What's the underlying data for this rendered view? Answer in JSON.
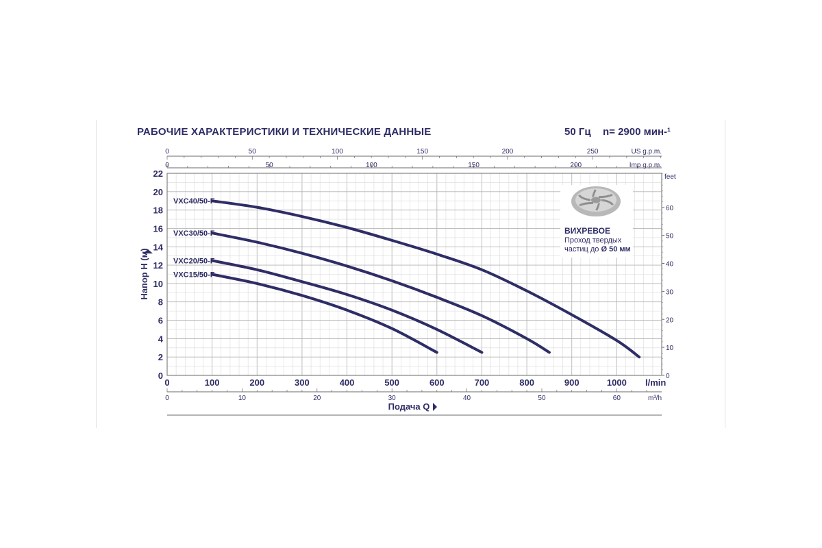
{
  "header": {
    "title": "РАБОЧИЕ ХАРАКТЕРИСТИКИ И ТЕХНИЧЕСКИЕ ДАННЫЕ",
    "frequency": "50 Гц",
    "speed": "n= 2900 мин-¹"
  },
  "badge": {
    "title": "ВИХРЕВОЕ",
    "line1": "Проход твердых",
    "line2_prefix": "частиц до ",
    "line2_bold": "Ø 50 мм"
  },
  "colors": {
    "curve": "#2e2d66",
    "grid": "#c8c8c8",
    "text": "#2e2d66"
  },
  "chart_data": {
    "type": "line",
    "title": "",
    "ylabel": "Напор H (м)",
    "xlabel": "Подача Q",
    "xunit": "l/min",
    "xlim": [
      0,
      1100
    ],
    "ylim": [
      0,
      22
    ],
    "x_ticks": [
      0,
      100,
      200,
      300,
      400,
      500,
      600,
      700,
      800,
      900,
      1000
    ],
    "y_ticks": [
      0,
      2,
      4,
      6,
      8,
      10,
      12,
      14,
      16,
      18,
      20,
      22
    ],
    "right_axis": {
      "label": "feet",
      "ticks": [
        0,
        10,
        20,
        30,
        40,
        50,
        60
      ]
    },
    "top_axis_us": {
      "label": "US g.p.m.",
      "ticks": [
        0,
        50,
        100,
        150,
        200,
        250
      ]
    },
    "top_axis_imp": {
      "label": "Imp g.p.m.",
      "ticks": [
        0,
        50,
        100,
        150,
        200
      ]
    },
    "bottom_axis_m3h": {
      "label": "m³/h",
      "ticks": [
        0,
        10,
        20,
        30,
        40,
        50,
        60
      ]
    },
    "grid": true,
    "series": [
      {
        "name": "VXC40/50-F",
        "x": [
          100,
          200,
          300,
          400,
          500,
          600,
          700,
          800,
          900,
          1000,
          1050
        ],
        "y": [
          19,
          18.3,
          17.3,
          16.1,
          14.7,
          13.2,
          11.5,
          9.2,
          6.6,
          3.8,
          2.0
        ]
      },
      {
        "name": "VXC30/50-F",
        "x": [
          100,
          200,
          300,
          400,
          500,
          600,
          700,
          800,
          850
        ],
        "y": [
          15.5,
          14.5,
          13.3,
          11.9,
          10.3,
          8.5,
          6.5,
          4.0,
          2.5
        ]
      },
      {
        "name": "VXC20/50-F",
        "x": [
          100,
          200,
          300,
          400,
          500,
          600,
          700
        ],
        "y": [
          12.5,
          11.5,
          10.2,
          8.8,
          7.1,
          5.0,
          2.5
        ]
      },
      {
        "name": "VXC15/50-F",
        "x": [
          100,
          200,
          300,
          400,
          500,
          600
        ],
        "y": [
          11.0,
          10.0,
          8.7,
          7.1,
          5.1,
          2.5
        ]
      }
    ]
  }
}
